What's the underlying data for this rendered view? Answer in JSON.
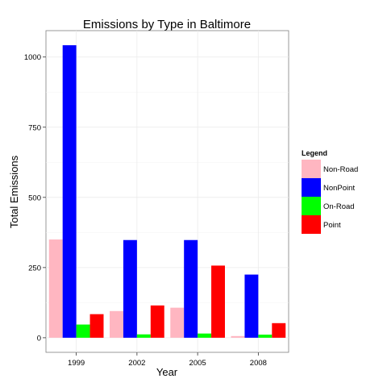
{
  "chart_data": {
    "type": "bar",
    "title": "Emissions by Type in Baltimore",
    "xlabel": "Year",
    "ylabel": "Total Emissions",
    "categories": [
      "1999",
      "2002",
      "2005",
      "2008"
    ],
    "series": [
      {
        "name": "Non-Road",
        "color": "#ffb6c1",
        "values": [
          350,
          95,
          107,
          6
        ]
      },
      {
        "name": "NonPoint",
        "color": "#0000ff",
        "values": [
          1042,
          348,
          348,
          225
        ]
      },
      {
        "name": "On-Road",
        "color": "#00ff00",
        "values": [
          47,
          12,
          15,
          11
        ]
      },
      {
        "name": "Point",
        "color": "#ff0000",
        "values": [
          84,
          115,
          257,
          52
        ]
      }
    ],
    "yticks": [
      0,
      250,
      500,
      750,
      1000
    ],
    "ytick_labels": [
      "0",
      "250",
      "500",
      "750",
      "1000"
    ],
    "ylim": [
      -52,
      1094
    ],
    "grid": true,
    "legend": {
      "title": "Legend",
      "position": "right"
    }
  }
}
